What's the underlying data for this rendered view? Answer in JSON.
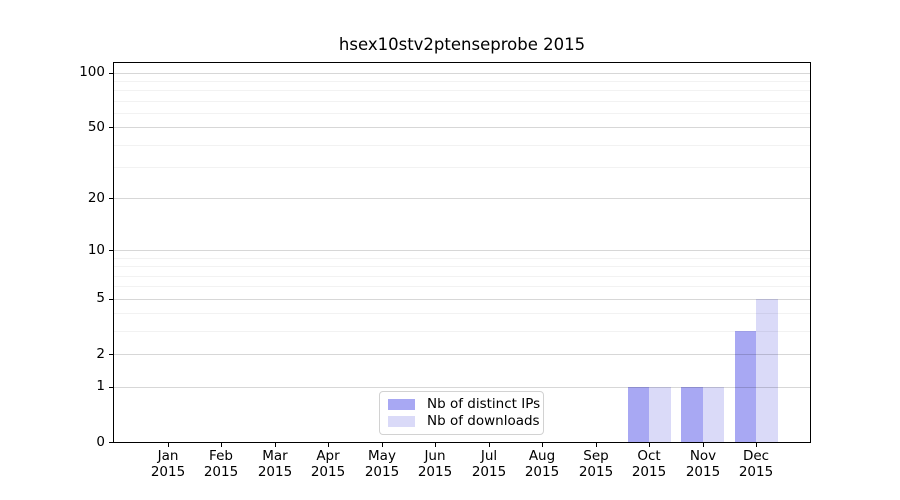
{
  "chart_data": {
    "type": "bar",
    "title": "hsex10stv2ptenseprobe 2015",
    "categories": [
      {
        "month": "Jan",
        "year": "2015"
      },
      {
        "month": "Feb",
        "year": "2015"
      },
      {
        "month": "Mar",
        "year": "2015"
      },
      {
        "month": "Apr",
        "year": "2015"
      },
      {
        "month": "May",
        "year": "2015"
      },
      {
        "month": "Jun",
        "year": "2015"
      },
      {
        "month": "Jul",
        "year": "2015"
      },
      {
        "month": "Aug",
        "year": "2015"
      },
      {
        "month": "Sep",
        "year": "2015"
      },
      {
        "month": "Oct",
        "year": "2015"
      },
      {
        "month": "Nov",
        "year": "2015"
      },
      {
        "month": "Dec",
        "year": "2015"
      }
    ],
    "series": [
      {
        "name": "Nb of distinct IPs",
        "color": "#a8a8f3",
        "values": [
          0,
          0,
          0,
          0,
          0,
          0,
          0,
          0,
          0,
          1,
          1,
          3
        ]
      },
      {
        "name": "Nb of downloads",
        "color": "#dadaf8",
        "values": [
          0,
          0,
          0,
          0,
          0,
          0,
          0,
          0,
          0,
          1,
          1,
          5
        ]
      }
    ],
    "yscale": "log1p",
    "yticks": [
      0,
      1,
      2,
      5,
      10,
      20,
      50,
      100
    ],
    "minor_yticks": [
      3,
      4,
      6,
      7,
      8,
      9,
      30,
      40,
      60,
      70,
      80,
      90
    ],
    "ylim": [
      0,
      113
    ],
    "grid": true,
    "legend_position": "inside-bottom-center",
    "colors": {
      "spine": "#000000",
      "grid_major": "#d6d6d6",
      "grid_minor": "#f2f2f2",
      "text": "#000000"
    }
  }
}
